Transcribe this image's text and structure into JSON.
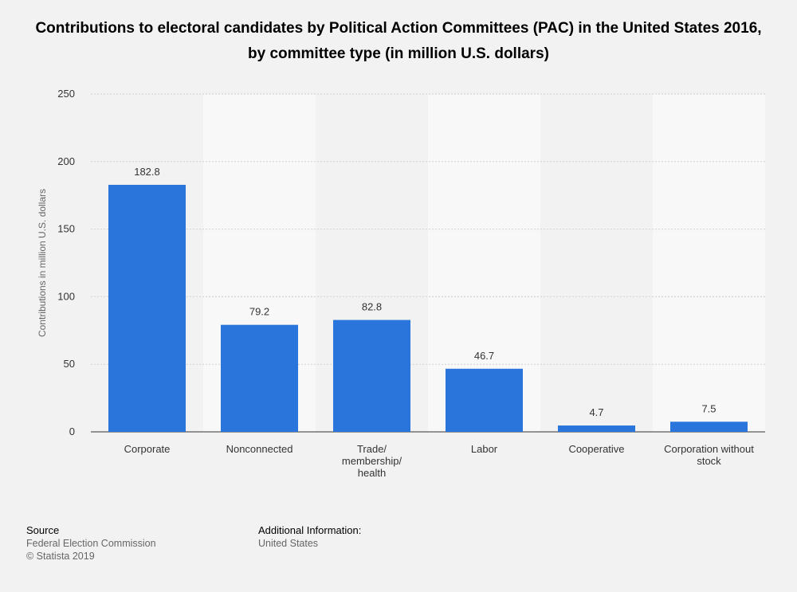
{
  "title": "Contributions to electoral candidates by Political Action Committees (PAC) in the United States 2016, by committee type (in million U.S. dollars)",
  "chart_data": {
    "type": "bar",
    "categories": [
      "Corporate",
      "Nonconnected",
      "Trade/\nmembership/\nhealth",
      "Labor",
      "Cooperative",
      "Corporation without\nstock"
    ],
    "values": [
      182.8,
      79.2,
      82.8,
      46.7,
      4.7,
      7.5
    ],
    "value_labels": [
      "182.8",
      "79.2",
      "82.8",
      "46.7",
      "4.7",
      "7.5"
    ],
    "xlabel": "",
    "ylabel": "Contributions in million U.S. dollars",
    "ylim": [
      0,
      250
    ],
    "yticks": [
      0,
      50,
      100,
      150,
      200,
      250
    ],
    "grid": true,
    "bar_color": "#2a75dc"
  },
  "footer": {
    "source_label": "Source",
    "source_lines": [
      "Federal Election Commission",
      "© Statista 2019"
    ],
    "info_label": "Additional Information:",
    "info_lines": [
      "United States"
    ]
  }
}
